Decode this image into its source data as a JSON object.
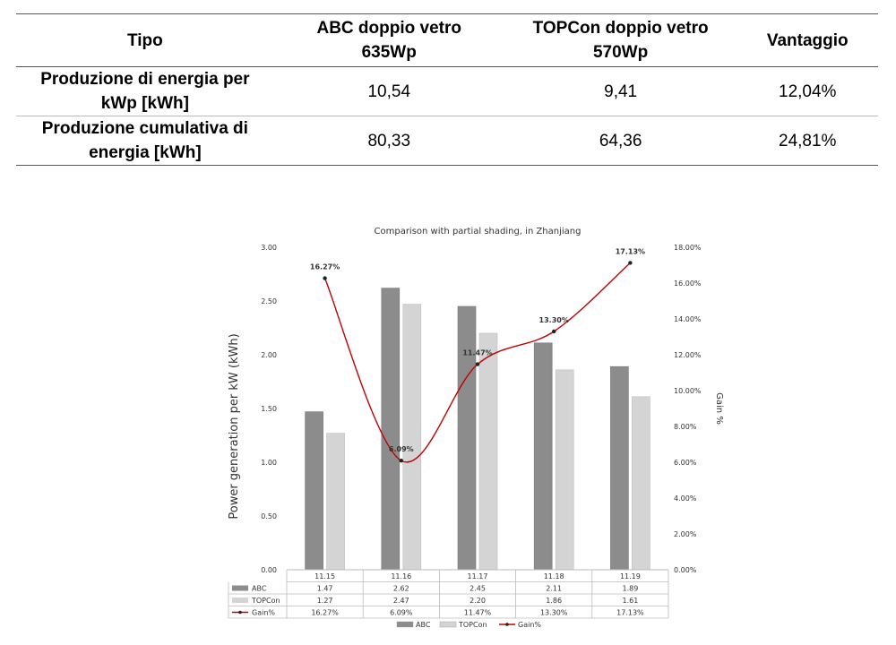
{
  "table": {
    "headers": [
      "Tipo",
      "ABC doppio vetro\n635Wp",
      "TOPCon doppio vetro\n570Wp",
      "Vantaggio"
    ],
    "rows": [
      [
        "Produzione di energia per kWp [kWh]",
        "10,54",
        "9,41",
        "12,04%"
      ],
      [
        "Produzione cumulativa di energia [kWh]",
        "80,33",
        "64,36",
        "24,81%"
      ]
    ]
  },
  "chart_data": {
    "type": "bar",
    "title": "Comparison with partial shading, in Zhanjiang",
    "ylabel": "Power generation per kW (kWh)",
    "y2label": "Gain %",
    "ylim": [
      0,
      3
    ],
    "y2lim": [
      0,
      18
    ],
    "yticks": [
      "0.00",
      "0.50",
      "1.00",
      "1.50",
      "2.00",
      "2.50",
      "3.00"
    ],
    "y2ticks": [
      "0.00%",
      "2.00%",
      "4.00%",
      "6.00%",
      "8.00%",
      "10.00%",
      "12.00%",
      "14.00%",
      "16.00%",
      "18.00%"
    ],
    "categories": [
      "11.15",
      "11.16",
      "11.17",
      "11.18",
      "11.19"
    ],
    "series": [
      {
        "name": "ABC",
        "kind": "bar",
        "color": "#8c8c8c",
        "values": [
          1.47,
          2.62,
          2.45,
          2.11,
          1.89
        ],
        "labels": [
          "1.47",
          "2.62",
          "2.45",
          "2.11",
          "1.89"
        ]
      },
      {
        "name": "TOPCon",
        "kind": "bar",
        "color": "#d4d4d4",
        "values": [
          1.27,
          2.47,
          2.2,
          1.86,
          1.61
        ],
        "labels": [
          "1.27",
          "2.47",
          "2.20",
          "1.86",
          "1.61"
        ]
      },
      {
        "name": "Gain%",
        "kind": "line",
        "axis": "right",
        "color": "#c00000",
        "values": [
          16.27,
          6.09,
          11.47,
          13.3,
          17.13
        ],
        "labels": [
          "16.27%",
          "6.09%",
          "11.47%",
          "13.30%",
          "17.13%"
        ]
      }
    ],
    "legend_position": "bottom",
    "grid": false
  }
}
